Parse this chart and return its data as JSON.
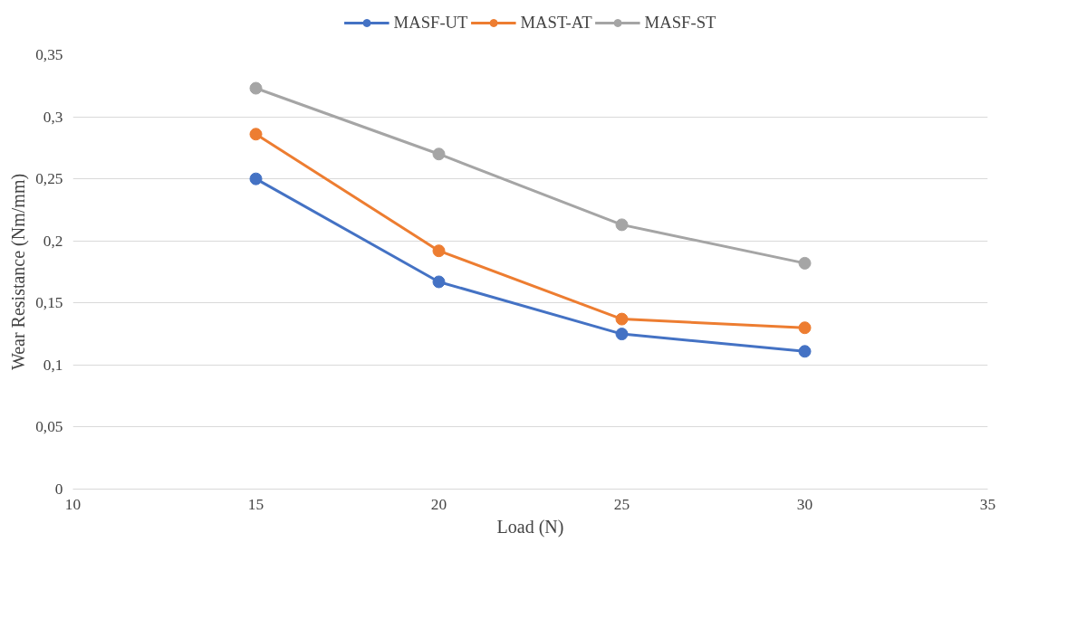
{
  "chart_data": {
    "type": "line",
    "xlabel": "Load (N)",
    "ylabel": "Wear Resistance (Nm/mm)",
    "x": [
      15,
      20,
      25,
      30
    ],
    "series": [
      {
        "name": "MASF-UT",
        "color": "#4472c4",
        "values": [
          0.25,
          0.167,
          0.125,
          0.111
        ]
      },
      {
        "name": "MAST-AT",
        "color": "#ed7d31",
        "values": [
          0.286,
          0.192,
          0.137,
          0.13
        ]
      },
      {
        "name": "MASF-ST",
        "color": "#a5a5a5",
        "values": [
          0.323,
          0.27,
          0.213,
          0.182
        ]
      }
    ],
    "xlim": [
      10,
      35
    ],
    "xticks": [
      10,
      15,
      20,
      25,
      30,
      35
    ],
    "ylim": [
      0,
      0.35
    ],
    "yticks": [
      0,
      {
        "value": 0.05,
        "label": "0,05"
      },
      {
        "value": 0.1,
        "label": "0,1"
      },
      {
        "value": 0.15,
        "label": "0,15"
      },
      {
        "value": 0.2,
        "label": "0,2"
      },
      {
        "value": 0.25,
        "label": "0,25"
      },
      {
        "value": 0.3,
        "label": "0,3"
      },
      {
        "value": 0.35,
        "label": "0,35"
      }
    ],
    "grid": "y",
    "legend": "top",
    "marker": "circle",
    "line_style": "solid"
  }
}
